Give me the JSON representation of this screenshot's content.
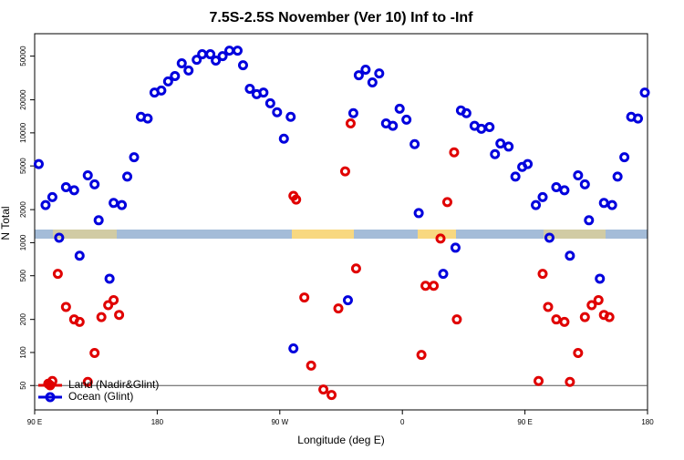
{
  "chart_data": {
    "type": "scatter",
    "title": "7.5S-2.5S November (Ver 10)   Inf to -Inf",
    "x_label": "Longitude (deg E)",
    "y_label": "N Total",
    "log_y": true,
    "xlim": [
      90,
      540
    ],
    "ylim": [
      30,
      80000
    ],
    "xticks": [
      {
        "value": 90,
        "label": "90 E"
      },
      180,
      {
        "value": 270,
        "label": "90 W"
      },
      {
        "value": 360,
        "label": "0"
      },
      {
        "value": 450,
        "label": "90 E"
      },
      {
        "value": 540,
        "label": "180"
      }
    ],
    "yticks": [
      50,
      100,
      200,
      500,
      1000,
      2000,
      5000,
      10000,
      20000,
      50000
    ],
    "reference_line": 50,
    "legend": "bottom-left",
    "series": [
      {
        "name": "Land (Nadir&Glint)",
        "color": "#e00000",
        "x": [
          100,
          103,
          107,
          113,
          119,
          123,
          129,
          134,
          139,
          144,
          148,
          152,
          280,
          282,
          288,
          293,
          302,
          308,
          313,
          318,
          322,
          326,
          374,
          377,
          383,
          388,
          393,
          398,
          400,
          460,
          463,
          467,
          473,
          479,
          483,
          489,
          494,
          499,
          504,
          508,
          512
        ],
        "values": [
          52,
          55,
          520,
          260,
          200,
          190,
          54,
          99,
          210,
          270,
          300,
          220,
          2670,
          2470,
          317,
          76,
          46,
          41,
          252,
          4460,
          12200,
          582,
          95,
          405,
          405,
          1090,
          2340,
          6650,
          200,
          55,
          520,
          260,
          200,
          190,
          54,
          99,
          210,
          270,
          300,
          220,
          210
        ]
      },
      {
        "name": "Ocean (Glint)",
        "color": "#0000dd",
        "x": [
          93,
          98,
          103,
          108,
          113,
          119,
          123,
          129,
          134,
          137,
          145,
          148,
          154,
          158,
          163,
          168,
          173,
          178,
          183,
          188,
          193,
          198,
          203,
          209,
          213,
          219,
          223,
          228,
          233,
          239,
          243,
          248,
          253,
          258,
          263,
          268,
          273,
          278,
          280,
          320,
          324,
          328,
          333,
          338,
          343,
          348,
          353,
          358,
          363,
          369,
          372,
          390,
          399,
          403,
          407,
          413,
          418,
          424,
          428,
          432,
          438,
          443,
          448,
          452,
          458,
          463,
          468,
          473,
          479,
          483,
          489,
          494,
          497,
          505,
          508,
          514,
          518,
          523,
          528,
          533,
          538
        ],
        "values": [
          5200,
          2200,
          2600,
          1110,
          3200,
          3000,
          760,
          4100,
          3400,
          1600,
          470,
          2300,
          2200,
          4000,
          6000,
          14000,
          13500,
          23300,
          24300,
          29400,
          32900,
          43000,
          37000,
          46300,
          52000,
          52000,
          45500,
          50000,
          56100,
          56100,
          41300,
          25200,
          22500,
          23300,
          18600,
          15400,
          8850,
          14000,
          109,
          299,
          15100,
          33500,
          37600,
          28800,
          34800,
          12200,
          11600,
          16600,
          13200,
          7900,
          1860,
          520,
          900,
          16000,
          15100,
          11600,
          10900,
          11300,
          6400,
          8000,
          7500,
          4000,
          4900,
          5200,
          2200,
          2600,
          1110,
          3200,
          3000,
          760,
          4100,
          3400,
          1600,
          470,
          2300,
          2200,
          4000,
          6000,
          14000,
          13500,
          23300
        ]
      }
    ]
  }
}
